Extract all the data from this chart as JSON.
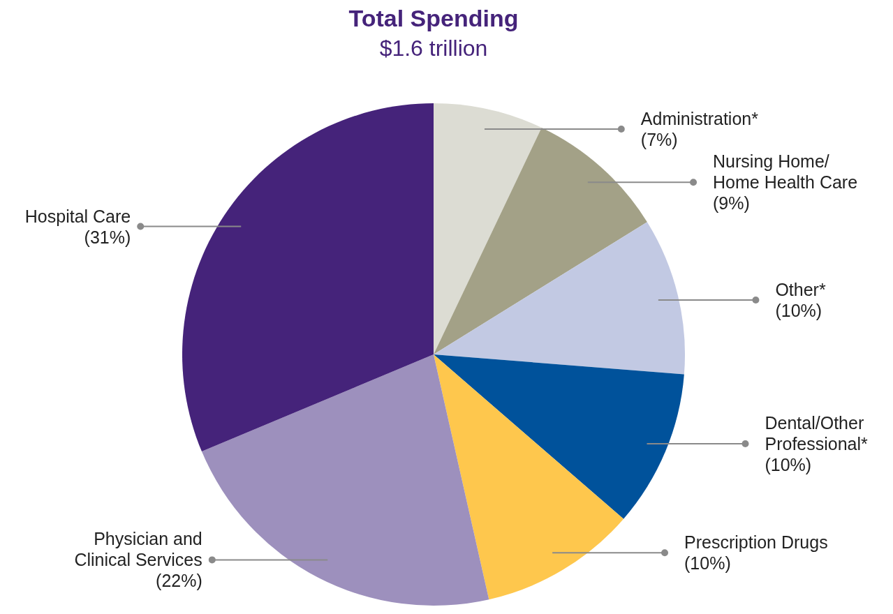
{
  "chart_data": {
    "type": "pie",
    "title": "Total Spending",
    "subtitle": "$1.6 trillion",
    "categories": [
      "Administration*",
      "Nursing Home/\nHome Health Care",
      "Other*",
      "Dental/Other\nProfessional*",
      "Prescription Drugs",
      "Physician and\nClinical Services",
      "Hospital Care"
    ],
    "values": [
      7,
      9,
      10,
      10,
      10,
      22,
      31
    ],
    "value_labels": [
      "(7%)",
      "(9%)",
      "(10%)",
      "(10%)",
      "(10%)",
      "(22%)",
      "(31%)"
    ],
    "colors": [
      "#dcdcd3",
      "#a3a187",
      "#c2c9e3",
      "#00529b",
      "#fec74d",
      "#9d90bd",
      "#45237a"
    ]
  }
}
